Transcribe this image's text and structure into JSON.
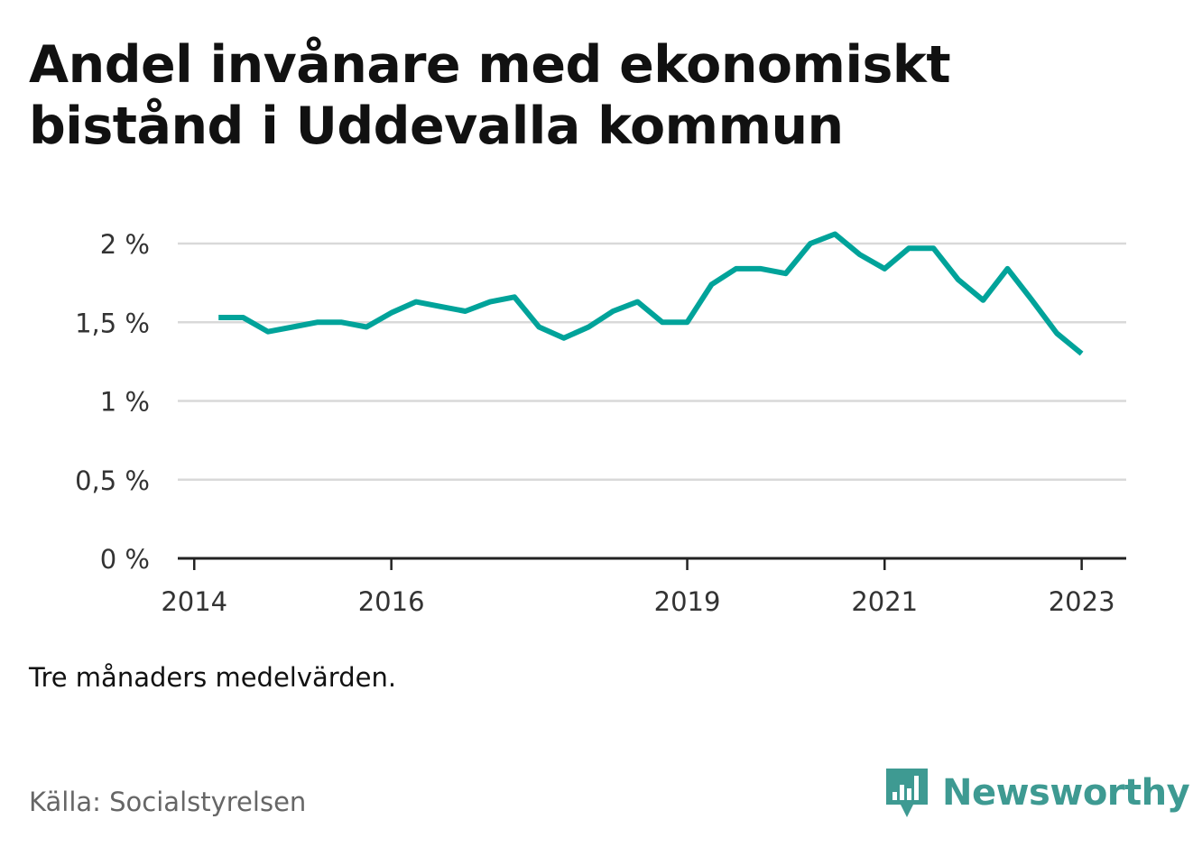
{
  "title": "Andel invånare med ekonomiskt bistånd i Uddevalla kommun",
  "note": "Tre månaders medelvärden.",
  "source": "Källa: Socialstyrelsen",
  "brand": {
    "name": "Newsworthy",
    "color": "#3e9a92",
    "icon": "newsworthy-logo-icon"
  },
  "colors": {
    "line": "#00a39a",
    "grid": "#d9d9d9",
    "axis": "#222222",
    "tick_label": "#333333"
  },
  "chart_data": {
    "type": "line",
    "title": "Andel invånare med ekonomiskt bistånd i Uddevalla kommun",
    "xlabel": "",
    "ylabel": "",
    "ylim": [
      0,
      2.2
    ],
    "xlim": [
      "2013-11-01",
      "2023-06-15"
    ],
    "yticks": [
      {
        "value": 0,
        "label": "0 %"
      },
      {
        "value": 0.5,
        "label": "0,5 %"
      },
      {
        "value": 1,
        "label": "1 %"
      },
      {
        "value": 1.5,
        "label": "1,5 %"
      },
      {
        "value": 2,
        "label": "2 %"
      }
    ],
    "xticks": [
      {
        "date": "2014-01-01",
        "label": "2014"
      },
      {
        "date": "2016-01-01",
        "label": "2016"
      },
      {
        "date": "2019-01-01",
        "label": "2019"
      },
      {
        "date": "2021-01-01",
        "label": "2021"
      },
      {
        "date": "2023-01-01",
        "label": "2023"
      }
    ],
    "grid": true,
    "series": [
      {
        "x": [
          "2014-04-01",
          "2014-07-01",
          "2014-10-01",
          "2015-01-01",
          "2015-04-01",
          "2015-07-01",
          "2015-10-01",
          "2016-01-01",
          "2016-04-01",
          "2016-07-01",
          "2016-10-01",
          "2017-01-01",
          "2017-04-01",
          "2017-07-01",
          "2017-10-01",
          "2018-01-01",
          "2018-04-01",
          "2018-07-01",
          "2018-10-01",
          "2019-01-01",
          "2019-04-01",
          "2019-07-01",
          "2019-10-01",
          "2020-01-01",
          "2020-04-01",
          "2020-07-01",
          "2020-10-01",
          "2021-01-01",
          "2021-04-01",
          "2021-07-01",
          "2021-10-01",
          "2022-01-01",
          "2022-04-01",
          "2022-07-01",
          "2022-10-01",
          "2023-01-01"
        ],
        "values": [
          1.53,
          1.53,
          1.44,
          1.47,
          1.5,
          1.5,
          1.47,
          1.56,
          1.63,
          1.6,
          1.57,
          1.63,
          1.66,
          1.47,
          1.4,
          1.47,
          1.57,
          1.63,
          1.5,
          1.5,
          1.74,
          1.84,
          1.84,
          1.81,
          2.0,
          2.06,
          1.93,
          1.84,
          1.97,
          1.97,
          1.77,
          1.64,
          1.84,
          1.64,
          1.43,
          1.3
        ]
      }
    ]
  }
}
